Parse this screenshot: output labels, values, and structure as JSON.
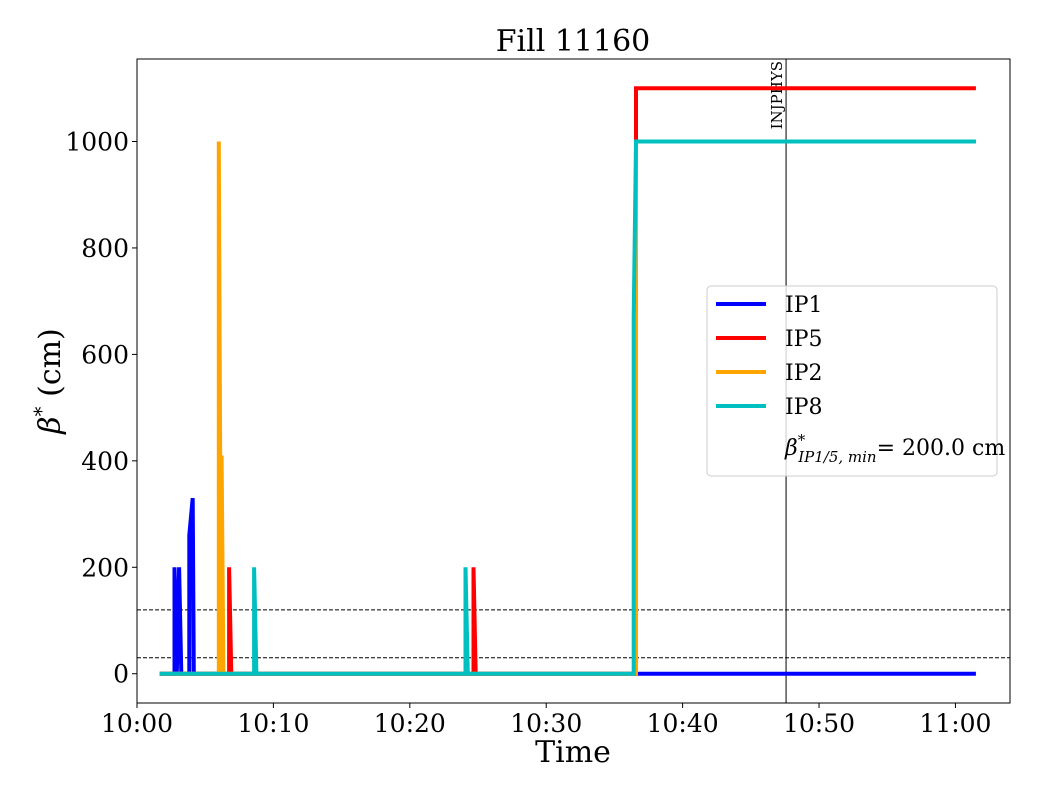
{
  "chart_data": {
    "type": "line",
    "title": "Fill 11160",
    "xlabel": "Time",
    "ylabel_symbol": "β",
    "ylabel_sup": "*",
    "ylabel_unit": "(cm)",
    "xlim": [
      "10:00:00",
      "11:04:00"
    ],
    "ylim": [
      -55,
      1155
    ],
    "x_ticks": [
      "10:00",
      "10:10",
      "10:20",
      "10:30",
      "10:40",
      "10:50",
      "11:00"
    ],
    "y_ticks": [
      0,
      200,
      400,
      600,
      800,
      1000
    ],
    "grid": false,
    "legend_position": "center-right",
    "series": [
      {
        "name": "IP1",
        "color": "#0000ff",
        "points": [
          [
            "10:01:40",
            0
          ],
          [
            "10:02:45",
            0
          ],
          [
            "10:02:45",
            200
          ],
          [
            "10:02:55",
            0
          ],
          [
            "10:03:05",
            200
          ],
          [
            "10:03:15",
            0
          ],
          [
            "10:03:50",
            0
          ],
          [
            "10:03:50",
            260
          ],
          [
            "10:04:05",
            330
          ],
          [
            "10:04:10",
            0
          ],
          [
            "11:01:30",
            0
          ]
        ]
      },
      {
        "name": "IP5",
        "color": "#ff0000",
        "points": [
          [
            "10:01:40",
            0
          ],
          [
            "10:06:45",
            0
          ],
          [
            "10:06:45",
            200
          ],
          [
            "10:06:55",
            0
          ],
          [
            "10:24:40",
            0
          ],
          [
            "10:24:40",
            200
          ],
          [
            "10:24:50",
            0
          ],
          [
            "10:36:35",
            0
          ],
          [
            "10:36:35",
            1100
          ],
          [
            "11:01:30",
            1100
          ]
        ]
      },
      {
        "name": "IP2",
        "color": "#ffa500",
        "points": [
          [
            "10:01:40",
            0
          ],
          [
            "10:06:00",
            0
          ],
          [
            "10:06:00",
            1000
          ],
          [
            "10:06:10",
            0
          ],
          [
            "10:06:12",
            410
          ],
          [
            "10:06:20",
            0
          ],
          [
            "10:36:35",
            0
          ],
          [
            "10:36:35",
            1000
          ],
          [
            "11:01:30",
            1000
          ]
        ]
      },
      {
        "name": "IP8",
        "color": "#00bfbf",
        "points": [
          [
            "10:01:40",
            0
          ],
          [
            "10:08:35",
            0
          ],
          [
            "10:08:35",
            200
          ],
          [
            "10:08:45",
            0
          ],
          [
            "10:24:05",
            0
          ],
          [
            "10:24:05",
            200
          ],
          [
            "10:24:15",
            0
          ],
          [
            "10:36:25",
            0
          ],
          [
            "10:36:25",
            670
          ],
          [
            "10:36:35",
            1000
          ],
          [
            "11:01:30",
            1000
          ]
        ]
      }
    ],
    "hlines": [
      {
        "y": 30,
        "style": "dashed",
        "color": "#000000"
      },
      {
        "y": 120,
        "style": "dashed",
        "color": "#000000"
      }
    ],
    "vlines": [
      {
        "x": "10:47:35",
        "label": "INJPHYS",
        "color": "#000000"
      }
    ],
    "legend_extra": {
      "symbol": "β",
      "sup": "*",
      "subscript": "IP1/5, min",
      "value_text": "= 200.0 cm"
    }
  }
}
